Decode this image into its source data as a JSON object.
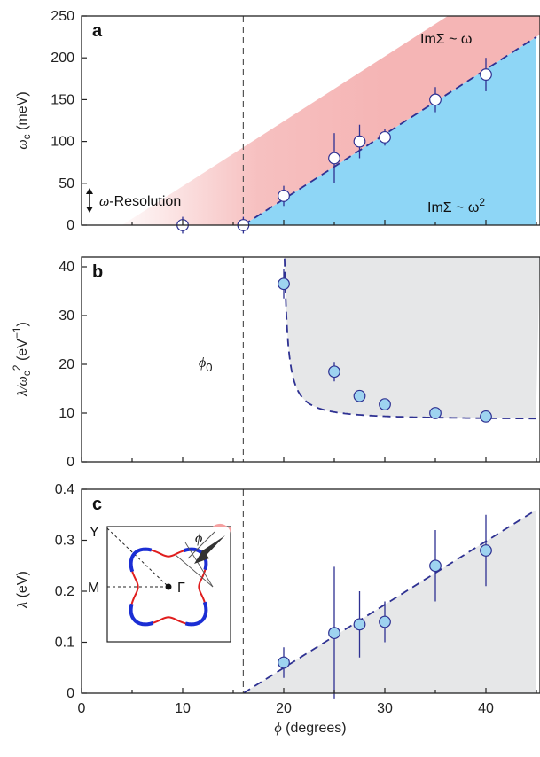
{
  "chart_data": [
    {
      "type": "scatter",
      "panel": "a",
      "ylabel_symbol": "ω",
      "ylabel_sub": "c",
      "ylabel_unit": " (meV)",
      "ylim": [
        0,
        250
      ],
      "yticks": [
        0,
        50,
        100,
        150,
        200,
        250
      ],
      "xlim": [
        0,
        45
      ],
      "x": [
        10,
        16,
        20,
        25,
        27.5,
        30,
        35,
        40
      ],
      "y": [
        0,
        0,
        35,
        80,
        100,
        105,
        150,
        180
      ],
      "yerr": [
        10,
        10,
        12,
        30,
        20,
        10,
        15,
        20
      ],
      "marker_fill": "#ffffff",
      "fit_line": [
        [
          16,
          0
        ],
        [
          45,
          225
        ]
      ],
      "annotations": {
        "upper_region": "ImΣ ~ ω",
        "lower_region_text": "ImΣ ~ ω",
        "lower_region_sup": "2",
        "resolution_symbol": "ω",
        "resolution_text": "-Resolution"
      }
    },
    {
      "type": "scatter",
      "panel": "b",
      "ylabel_text": "λ/ω",
      "ylabel_sub": "c",
      "ylabel_sup": "2",
      "ylabel_unit": " (eV",
      "ylabel_unit_sup": "−1",
      "ylabel_unit_close": ")",
      "ylim": [
        0,
        42
      ],
      "yticks": [
        0,
        10,
        20,
        30,
        40
      ],
      "xlim": [
        0,
        45
      ],
      "x": [
        20,
        25,
        27.5,
        30,
        35,
        40
      ],
      "y": [
        36.5,
        18.5,
        13.5,
        11.8,
        10,
        9.3
      ],
      "yerr": [
        3,
        2,
        0.8,
        0.5,
        0.5,
        0.5
      ],
      "marker_fill": "#9ed3f0",
      "annotations": {
        "phi0_symbol": "ϕ",
        "phi0_sub": "0"
      }
    },
    {
      "type": "scatter",
      "panel": "c",
      "ylabel_text": "λ",
      "ylabel_unit": " (eV)",
      "ylim": [
        0,
        0.4
      ],
      "yticks": [
        0,
        0.1,
        0.2,
        0.3,
        0.4
      ],
      "ytick_labels": [
        "0",
        "0.1",
        "0.2",
        "0.3",
        "0.4"
      ],
      "xlim": [
        0,
        45
      ],
      "xticks": [
        0,
        10,
        20,
        30,
        40
      ],
      "xtick_labels": [
        "0",
        "10",
        "20",
        "30",
        "40"
      ],
      "xlabel_symbol": "ϕ",
      "xlabel_text": " (degrees)",
      "x": [
        20,
        25,
        27.5,
        30,
        35,
        40
      ],
      "y": [
        0.06,
        0.118,
        0.135,
        0.14,
        0.25,
        0.28
      ],
      "yerr": [
        0.03,
        0.13,
        0.065,
        0.04,
        0.07,
        0.07
      ],
      "marker_fill": "#9ed3f0",
      "fit_line": [
        [
          16,
          0
        ],
        [
          45,
          0.36
        ]
      ],
      "inset": {
        "label_Y": "Y",
        "label_M": "M",
        "label_Gamma": "Γ",
        "label_phi": "ϕ"
      }
    }
  ],
  "colors": {
    "fill_blue": "#8ed6f6",
    "fill_pink": "#f5b5b5",
    "fill_gray": "#e6e7e8",
    "line_dash": "#2e3192",
    "errbar": "#2e3192",
    "vline": "#555555"
  },
  "phi0": 16
}
